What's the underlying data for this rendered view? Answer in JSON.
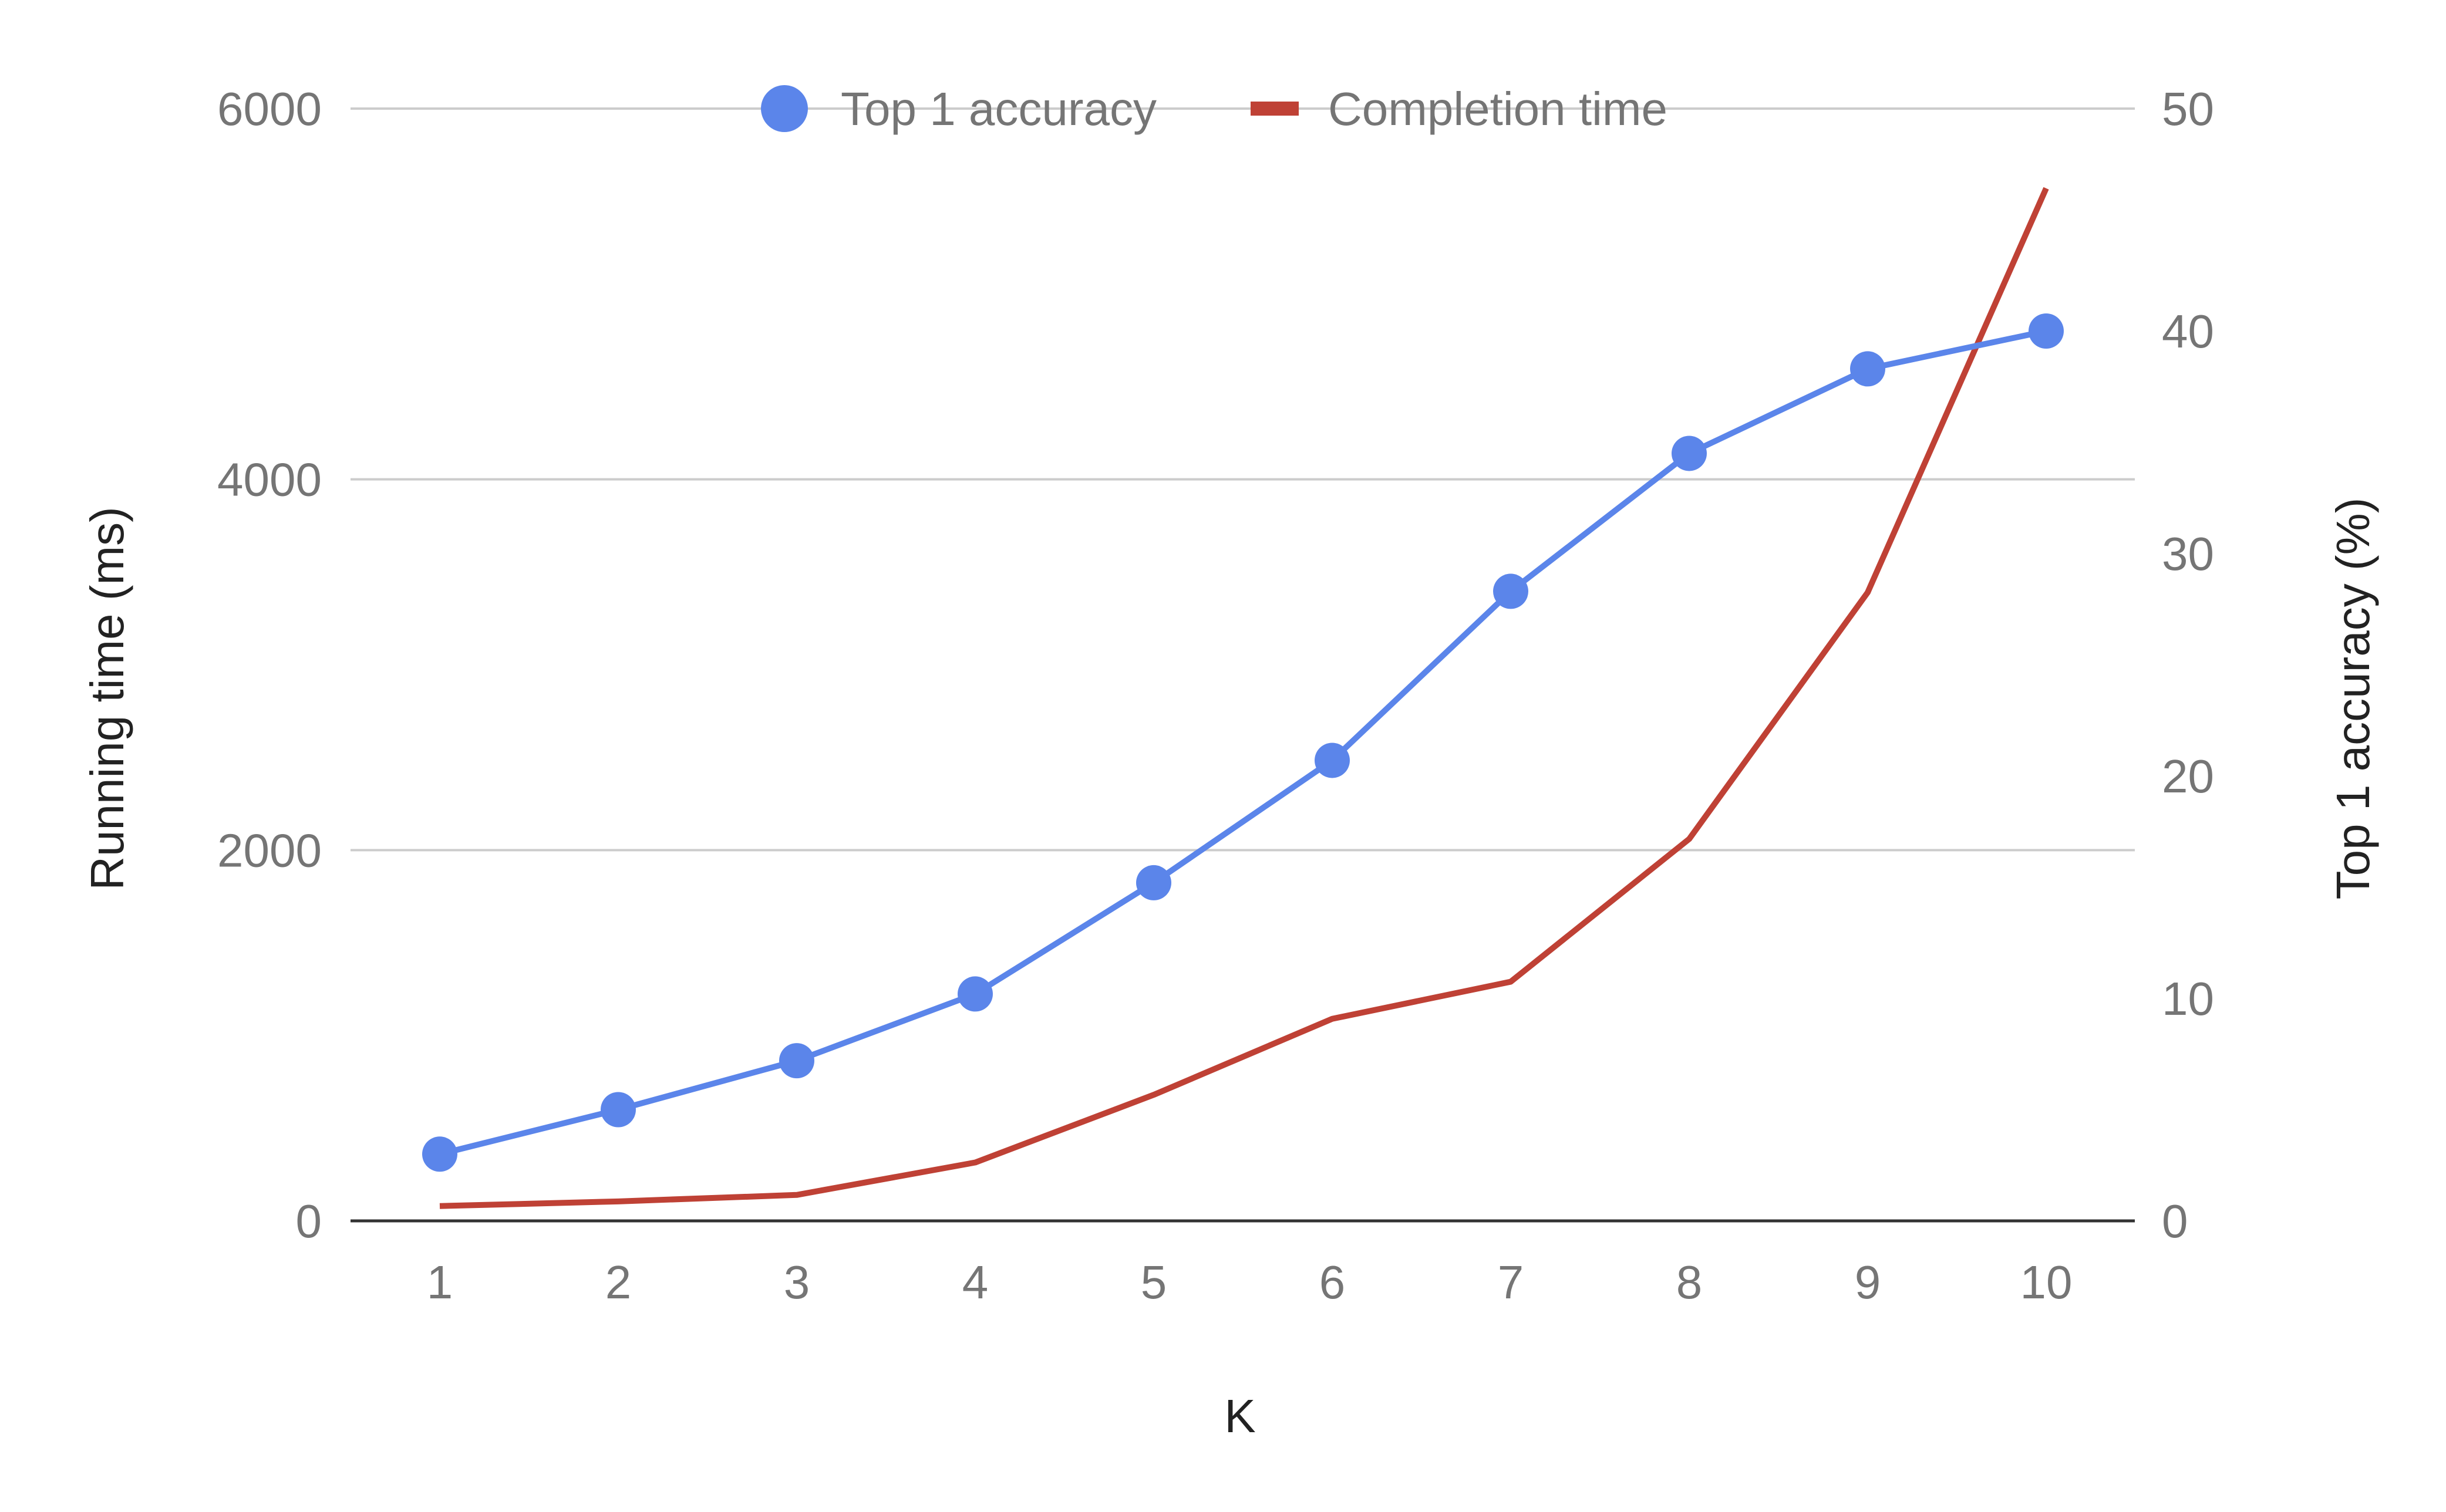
{
  "colors": {
    "accuracy": "#5b85ea",
    "time": "#bf4135",
    "gridline": "#cccccc",
    "baseline": "#333333",
    "tick_text": "#757575",
    "axis_title": "#222222"
  },
  "chart_data": {
    "type": "line",
    "title": "",
    "xlabel": "K",
    "ylabel_left": "Running time (ms)",
    "ylabel_right": "Top 1 accuracy (%)",
    "x": [
      1,
      2,
      3,
      4,
      5,
      6,
      7,
      8,
      9,
      10
    ],
    "x_tick_labels": [
      "1",
      "2",
      "3",
      "4",
      "5",
      "6",
      "7",
      "8",
      "9",
      "10"
    ],
    "ylim_left": [
      0,
      6000
    ],
    "ylim_right": [
      0,
      50
    ],
    "y_ticks_left": [
      "0",
      "2000",
      "4000",
      "6000"
    ],
    "y_ticks_right": [
      "0",
      "10",
      "20",
      "30",
      "40",
      "50"
    ],
    "grid": true,
    "legend_position": "top",
    "series": [
      {
        "name": "Top 1 accuracy",
        "axis": "right",
        "marker": "circle",
        "color": "#5b85ea",
        "values": [
          3.0,
          5.0,
          7.2,
          10.2,
          15.2,
          20.7,
          28.3,
          34.5,
          38.3,
          40.0
        ]
      },
      {
        "name": "Completion time",
        "axis": "left",
        "marker": "none",
        "color": "#bf4135",
        "values": [
          80,
          105,
          140,
          315,
          680,
          1090,
          1290,
          2060,
          3390,
          5570
        ]
      }
    ]
  }
}
